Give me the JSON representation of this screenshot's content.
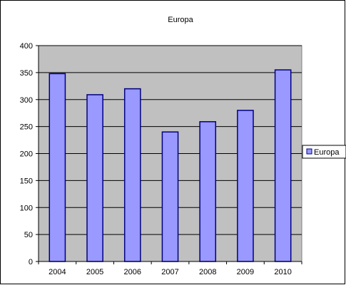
{
  "chart_data": {
    "type": "bar",
    "title": "Europa",
    "categories": [
      "2004",
      "2005",
      "2006",
      "2007",
      "2008",
      "2009",
      "2010"
    ],
    "series": [
      {
        "name": "Europa",
        "values": [
          348,
          309,
          320,
          240,
          259,
          280,
          355
        ]
      }
    ],
    "ylim": [
      0,
      400
    ],
    "yticks": [
      0,
      50,
      100,
      150,
      200,
      250,
      300,
      350,
      400
    ],
    "grid": true,
    "legend": "right",
    "colors": {
      "plot_background": "#c0c0c0",
      "bar_fill": "#9999ff",
      "bar_stroke": "#000080",
      "gridline": "#000000"
    }
  }
}
